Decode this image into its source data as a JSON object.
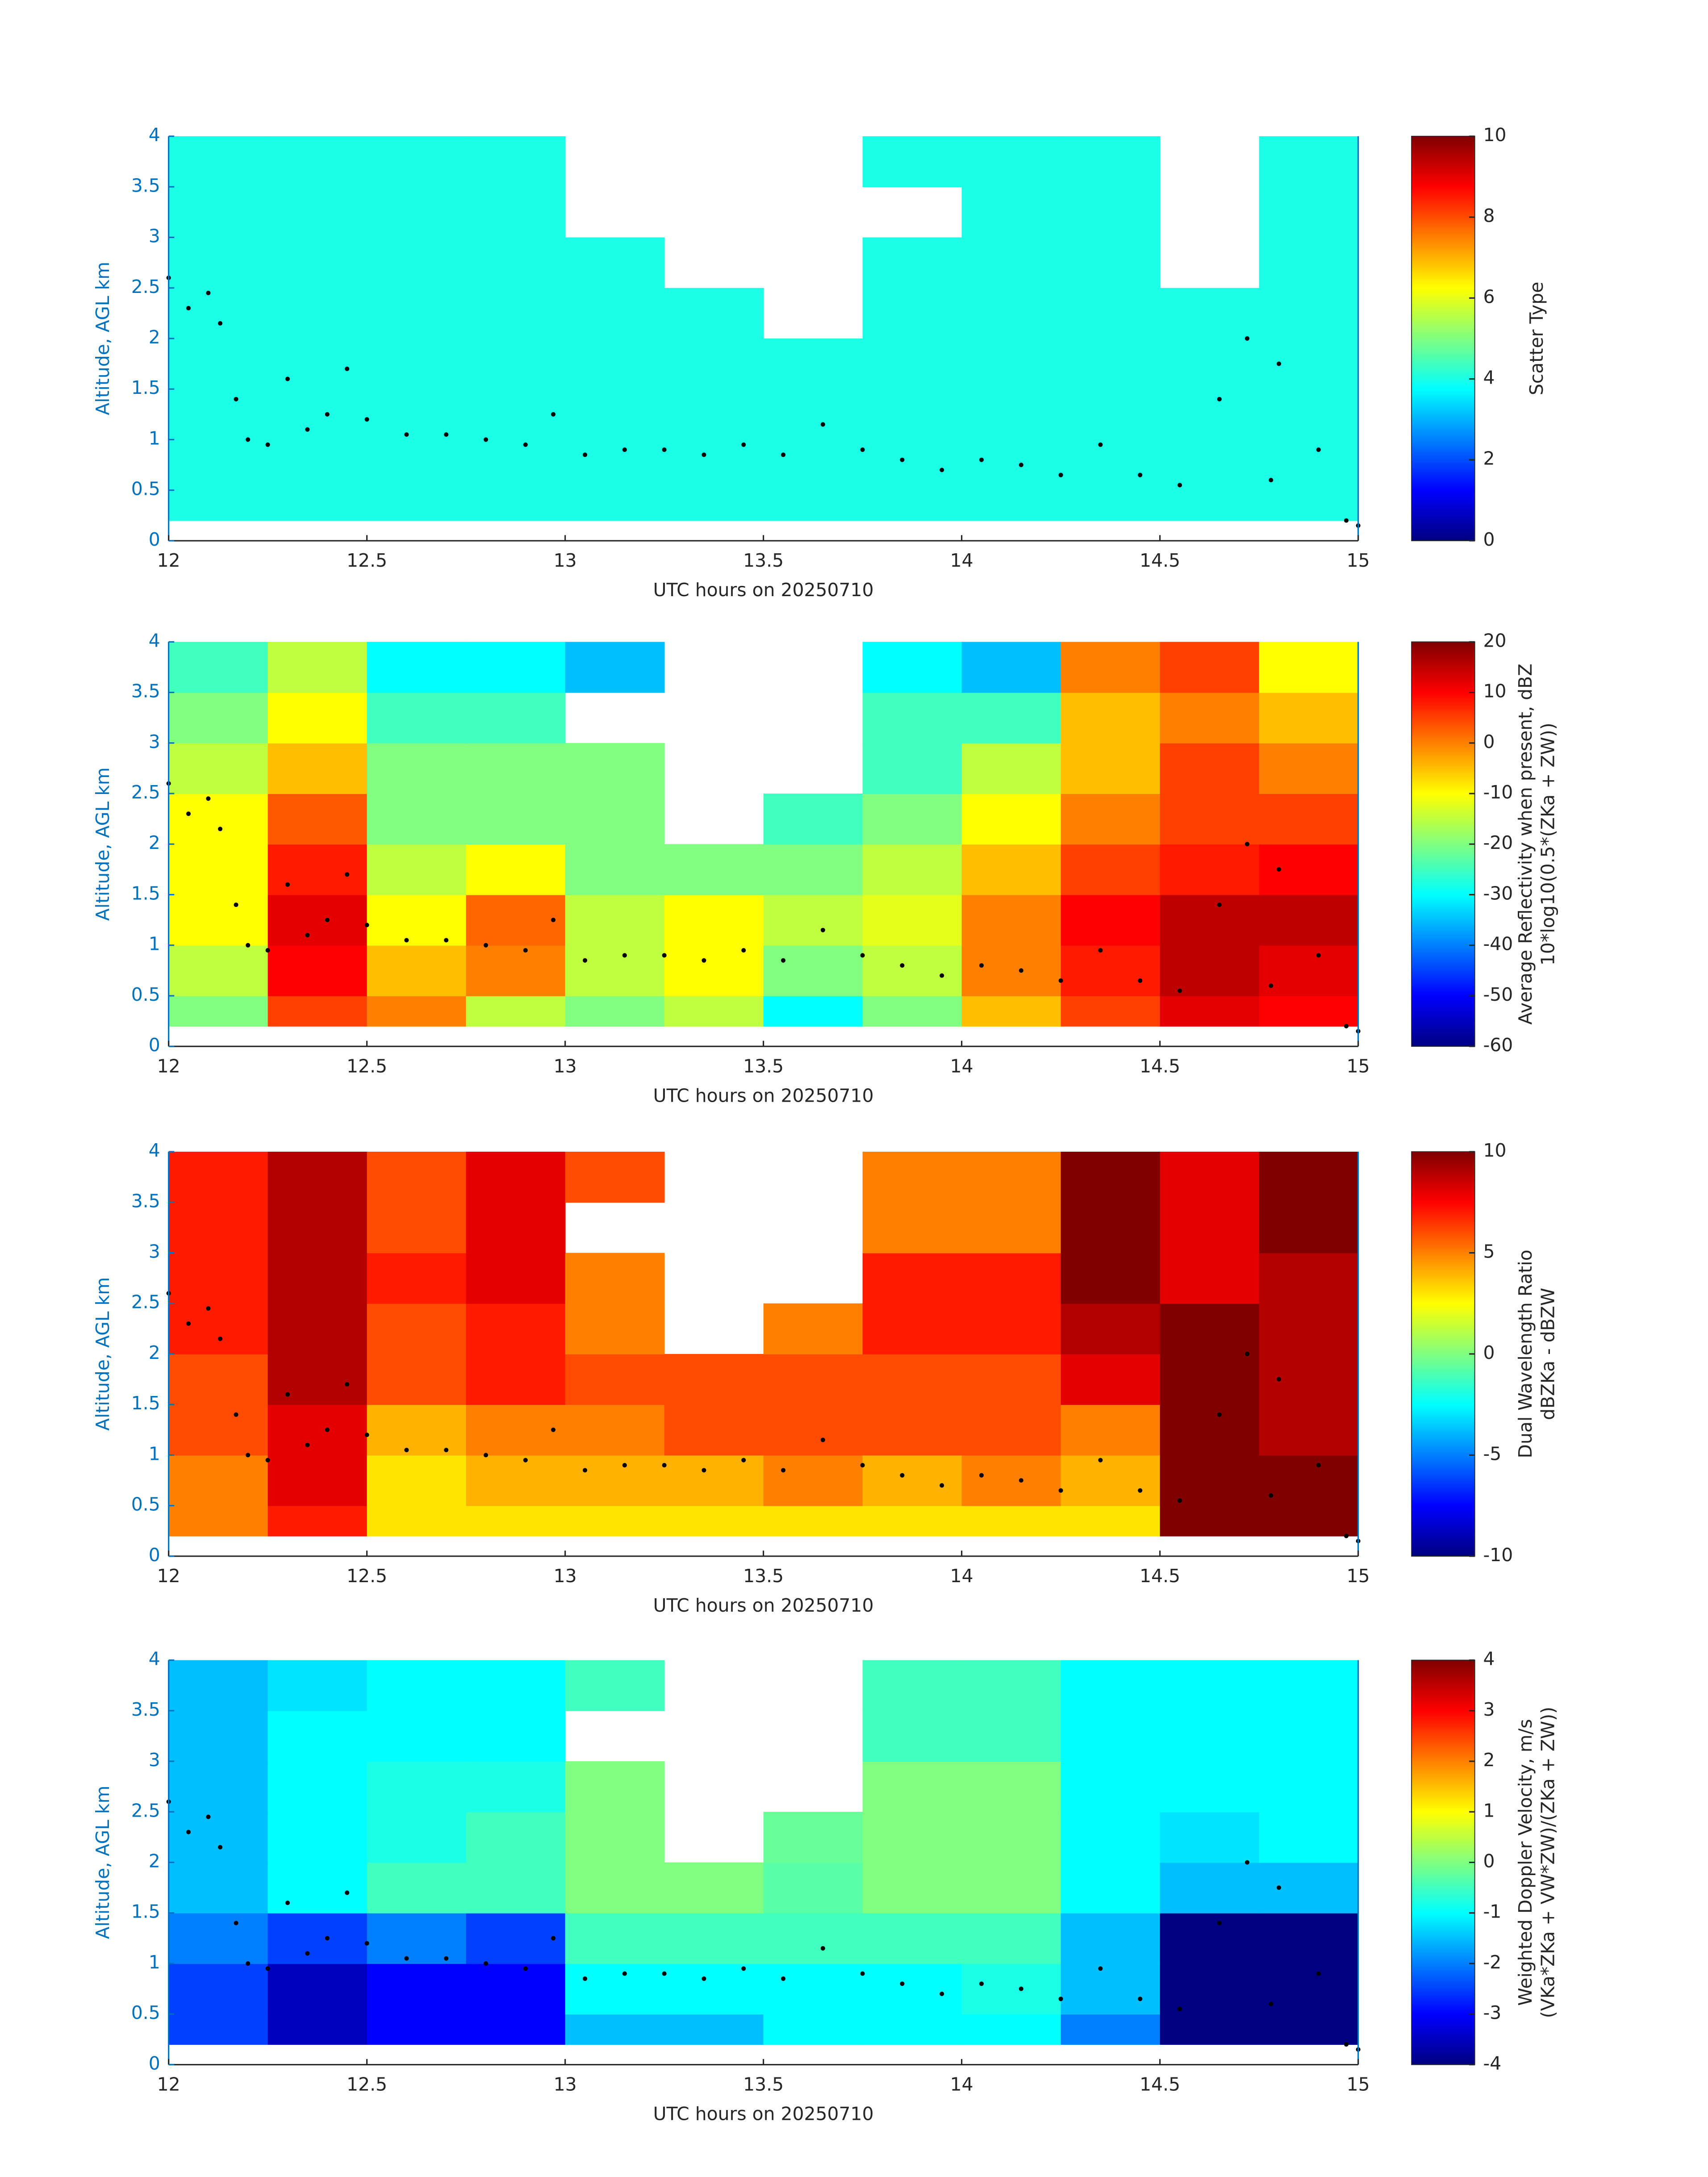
{
  "chart_data": [
    {
      "type": "heatmap",
      "xlabel": "UTC hours on 20250710",
      "ylabel": "Altitude, AGL km",
      "colorbar_label": [
        "Scatter Type"
      ],
      "x_edges": [
        12,
        12.25,
        12.5,
        12.75,
        13,
        13.25,
        13.5,
        13.75,
        14,
        14.25,
        14.5,
        14.75,
        15
      ],
      "y_edges": [
        0.2,
        0.5,
        1,
        1.5,
        2,
        2.5,
        3,
        3.5,
        4
      ],
      "z": [
        [
          4,
          4,
          4,
          4,
          4,
          4,
          4,
          4,
          4,
          4,
          4,
          4
        ],
        [
          4,
          4,
          4,
          4,
          4,
          4,
          4,
          4,
          4,
          4,
          4,
          4
        ],
        [
          4,
          4,
          4,
          4,
          4,
          4,
          4,
          4,
          4,
          4,
          4,
          4
        ],
        [
          4,
          4,
          4,
          4,
          4,
          4,
          4,
          4,
          4,
          4,
          4,
          4
        ],
        [
          4,
          4,
          4,
          4,
          4,
          4,
          null,
          4,
          4,
          4,
          4,
          4
        ],
        [
          4,
          4,
          4,
          4,
          4,
          null,
          null,
          4,
          4,
          4,
          null,
          4
        ],
        [
          4,
          4,
          4,
          4,
          null,
          null,
          null,
          null,
          4,
          4,
          null,
          4
        ],
        [
          4,
          4,
          4,
          4,
          null,
          null,
          null,
          4,
          4,
          4,
          null,
          4
        ]
      ],
      "clim": [
        0,
        10
      ],
      "cticks": [
        0,
        2,
        4,
        6,
        8,
        10
      ],
      "colormap": "jet",
      "xlim": [
        12,
        15
      ],
      "ylim": [
        0,
        4
      ],
      "xticks": [
        12,
        12.5,
        13,
        13.5,
        14,
        14.5,
        15
      ],
      "yticks": [
        0,
        0.5,
        1,
        1.5,
        2,
        2.5,
        3,
        3.5,
        4
      ],
      "markers": {
        "color": "#000000",
        "x": [
          12.0,
          12.05,
          12.1,
          12.13,
          12.17,
          12.2,
          12.25,
          12.3,
          12.35,
          12.4,
          12.45,
          12.5,
          12.6,
          12.7,
          12.8,
          12.9,
          12.97,
          13.05,
          13.15,
          13.25,
          13.35,
          13.45,
          13.55,
          13.65,
          13.75,
          13.85,
          13.95,
          14.05,
          14.15,
          14.25,
          14.35,
          14.45,
          14.55,
          14.65,
          14.72,
          14.78,
          14.8,
          14.9,
          14.97,
          15.0
        ],
        "y": [
          2.6,
          2.3,
          2.45,
          2.15,
          1.4,
          1.0,
          0.95,
          1.6,
          1.1,
          1.25,
          1.7,
          1.2,
          1.05,
          1.05,
          1.0,
          0.95,
          1.25,
          0.85,
          0.9,
          0.9,
          0.85,
          0.95,
          0.85,
          1.15,
          0.9,
          0.8,
          0.7,
          0.8,
          0.75,
          0.65,
          0.95,
          0.65,
          0.55,
          1.4,
          2.0,
          0.6,
          1.75,
          0.9,
          0.2,
          0.15
        ]
      }
    },
    {
      "type": "heatmap",
      "xlabel": "UTC hours on 20250710",
      "ylabel": "Altitude, AGL km",
      "colorbar_label": [
        "Average Reflectivity when present, dBZ",
        "10*log10(0.5*(ZKa + ZW))"
      ],
      "x_edges": [
        12,
        12.25,
        12.5,
        12.75,
        13,
        13.25,
        13.5,
        13.75,
        14,
        14.25,
        14.5,
        14.75,
        15
      ],
      "y_edges": [
        0.2,
        0.5,
        1,
        1.5,
        2,
        2.5,
        3,
        3.5,
        4
      ],
      "z": [
        [
          -20,
          5,
          0,
          -15,
          -20,
          -15,
          -30,
          -20,
          -5,
          5,
          12,
          10
        ],
        [
          -15,
          10,
          -5,
          0,
          -15,
          -10,
          -20,
          -15,
          0,
          8,
          15,
          12
        ],
        [
          -10,
          12,
          -10,
          2,
          -15,
          -10,
          -15,
          -12,
          0,
          10,
          15,
          15
        ],
        [
          -10,
          8,
          -15,
          -10,
          -20,
          -20,
          -20,
          -15,
          -5,
          5,
          8,
          10
        ],
        [
          -10,
          3,
          -20,
          -20,
          -20,
          null,
          -25,
          -20,
          -10,
          0,
          5,
          5
        ],
        [
          -15,
          -5,
          -20,
          -20,
          -20,
          null,
          null,
          -25,
          -15,
          -5,
          5,
          0
        ],
        [
          -20,
          -10,
          -25,
          -25,
          null,
          null,
          null,
          -25,
          -25,
          -5,
          0,
          -5
        ],
        [
          -25,
          -15,
          -30,
          -30,
          -35,
          null,
          null,
          -30,
          -35,
          0,
          5,
          -10
        ]
      ],
      "clim": [
        -60,
        20
      ],
      "cticks": [
        -60,
        -50,
        -40,
        -30,
        -20,
        -10,
        0,
        10,
        20
      ],
      "colormap": "jet",
      "xlim": [
        12,
        15
      ],
      "ylim": [
        0,
        4
      ],
      "xticks": [
        12,
        12.5,
        13,
        13.5,
        14,
        14.5,
        15
      ],
      "yticks": [
        0,
        0.5,
        1,
        1.5,
        2,
        2.5,
        3,
        3.5,
        4
      ],
      "markers": {
        "color": "#000000",
        "x": [
          12.0,
          12.05,
          12.1,
          12.13,
          12.17,
          12.2,
          12.25,
          12.3,
          12.35,
          12.4,
          12.45,
          12.5,
          12.6,
          12.7,
          12.8,
          12.9,
          12.97,
          13.05,
          13.15,
          13.25,
          13.35,
          13.45,
          13.55,
          13.65,
          13.75,
          13.85,
          13.95,
          14.05,
          14.15,
          14.25,
          14.35,
          14.45,
          14.55,
          14.65,
          14.72,
          14.78,
          14.8,
          14.9,
          14.97,
          15.0
        ],
        "y": [
          2.6,
          2.3,
          2.45,
          2.15,
          1.4,
          1.0,
          0.95,
          1.6,
          1.1,
          1.25,
          1.7,
          1.2,
          1.05,
          1.05,
          1.0,
          0.95,
          1.25,
          0.85,
          0.9,
          0.9,
          0.85,
          0.95,
          0.85,
          1.15,
          0.9,
          0.8,
          0.7,
          0.8,
          0.75,
          0.65,
          0.95,
          0.65,
          0.55,
          1.4,
          2.0,
          0.6,
          1.75,
          0.9,
          0.2,
          0.15
        ]
      }
    },
    {
      "type": "heatmap",
      "xlabel": "UTC hours on 20250710",
      "ylabel": "Altitude, AGL km",
      "colorbar_label": [
        "Dual Wavelength Ratio",
        "dBZKa - dBZW"
      ],
      "x_edges": [
        12,
        12.25,
        12.5,
        12.75,
        13,
        13.25,
        13.5,
        13.75,
        14,
        14.25,
        14.5,
        14.75,
        15
      ],
      "y_edges": [
        0.2,
        0.5,
        1,
        1.5,
        2,
        2.5,
        3,
        3.5,
        4
      ],
      "z": [
        [
          5,
          7,
          3,
          3,
          3,
          3,
          3,
          3,
          3,
          3,
          10,
          10
        ],
        [
          5,
          8,
          3,
          4,
          4,
          4,
          5,
          4,
          5,
          4,
          10,
          10
        ],
        [
          6,
          8,
          4,
          5,
          5,
          6,
          6,
          6,
          6,
          5,
          10,
          9
        ],
        [
          6,
          9,
          6,
          7,
          6,
          6,
          6,
          6,
          6,
          8,
          10,
          9
        ],
        [
          7,
          9,
          6,
          7,
          5,
          null,
          5,
          7,
          7,
          9,
          10,
          9
        ],
        [
          7,
          9,
          7,
          8,
          5,
          null,
          null,
          7,
          7,
          10,
          8,
          9
        ],
        [
          7,
          9,
          6,
          8,
          null,
          null,
          null,
          5,
          5,
          10,
          8,
          10
        ],
        [
          7,
          9,
          6,
          8,
          6,
          null,
          null,
          5,
          5,
          10,
          8,
          10
        ]
      ],
      "clim": [
        -10,
        10
      ],
      "cticks": [
        -10,
        -5,
        0,
        5,
        10
      ],
      "colormap": "jet",
      "xlim": [
        12,
        15
      ],
      "ylim": [
        0,
        4
      ],
      "xticks": [
        12,
        12.5,
        13,
        13.5,
        14,
        14.5,
        15
      ],
      "yticks": [
        0,
        0.5,
        1,
        1.5,
        2,
        2.5,
        3,
        3.5,
        4
      ],
      "markers": {
        "color": "#000000",
        "x": [
          12.0,
          12.05,
          12.1,
          12.13,
          12.17,
          12.2,
          12.25,
          12.3,
          12.35,
          12.4,
          12.45,
          12.5,
          12.6,
          12.7,
          12.8,
          12.9,
          12.97,
          13.05,
          13.15,
          13.25,
          13.35,
          13.45,
          13.55,
          13.65,
          13.75,
          13.85,
          13.95,
          14.05,
          14.15,
          14.25,
          14.35,
          14.45,
          14.55,
          14.65,
          14.72,
          14.78,
          14.8,
          14.9,
          14.97,
          15.0
        ],
        "y": [
          2.6,
          2.3,
          2.45,
          2.15,
          1.4,
          1.0,
          0.95,
          1.6,
          1.1,
          1.25,
          1.7,
          1.2,
          1.05,
          1.05,
          1.0,
          0.95,
          1.25,
          0.85,
          0.9,
          0.9,
          0.85,
          0.95,
          0.85,
          1.15,
          0.9,
          0.8,
          0.7,
          0.8,
          0.75,
          0.65,
          0.95,
          0.65,
          0.55,
          1.4,
          2.0,
          0.6,
          1.75,
          0.9,
          0.2,
          0.15
        ]
      }
    },
    {
      "type": "heatmap",
      "xlabel": "UTC hours on 20250710",
      "ylabel": "Altitude, AGL km",
      "colorbar_label": [
        "Weighted Doppler Velocity, m/s",
        "(VKa*ZKa + VW*ZW)/(ZKa + ZW))"
      ],
      "x_edges": [
        12,
        12.25,
        12.5,
        12.75,
        13,
        13.25,
        13.5,
        13.75,
        14,
        14.25,
        14.5,
        14.75,
        15
      ],
      "y_edges": [
        0.2,
        0.5,
        1,
        1.5,
        2,
        2.5,
        3,
        3.5,
        4
      ],
      "z": [
        [
          -2.5,
          -3.5,
          -3,
          -3,
          -1.5,
          -1.5,
          -1,
          -1,
          -1,
          -2,
          -4,
          -4
        ],
        [
          -2.5,
          -3.5,
          -3,
          -3,
          -1,
          -1,
          -1,
          -1,
          -0.8,
          -1.5,
          -4,
          -4
        ],
        [
          -2,
          -2.5,
          -2,
          -2.5,
          -0.5,
          -0.5,
          -0.5,
          -0.5,
          -0.5,
          -1.5,
          -4,
          -4
        ],
        [
          -1.5,
          -1,
          -0.5,
          -0.5,
          0,
          0,
          -0.3,
          0,
          0,
          -1,
          -1.5,
          -1.5
        ],
        [
          -1.5,
          -1,
          -0.8,
          -0.5,
          0,
          null,
          -0.2,
          0,
          0,
          -1,
          -1.2,
          -1
        ],
        [
          -1.5,
          -1,
          -0.8,
          -0.8,
          0,
          null,
          null,
          0,
          0,
          -1,
          -1,
          -1
        ],
        [
          -1.5,
          -1,
          -1,
          -1,
          null,
          null,
          null,
          -0.5,
          -0.5,
          -1,
          -1,
          -1
        ],
        [
          -1.5,
          -1.2,
          -1,
          -1,
          -0.5,
          null,
          null,
          -0.5,
          -0.5,
          -1,
          -1,
          -1
        ]
      ],
      "clim": [
        -4,
        4
      ],
      "cticks": [
        -4,
        -3,
        -2,
        -1,
        0,
        1,
        2,
        3,
        4
      ],
      "colormap": "jet",
      "xlim": [
        12,
        15
      ],
      "ylim": [
        0,
        4
      ],
      "xticks": [
        12,
        12.5,
        13,
        13.5,
        14,
        14.5,
        15
      ],
      "yticks": [
        0,
        0.5,
        1,
        1.5,
        2,
        2.5,
        3,
        3.5,
        4
      ],
      "markers": {
        "color": "#000000",
        "x": [
          12.0,
          12.05,
          12.1,
          12.13,
          12.17,
          12.2,
          12.25,
          12.3,
          12.35,
          12.4,
          12.45,
          12.5,
          12.6,
          12.7,
          12.8,
          12.9,
          12.97,
          13.05,
          13.15,
          13.25,
          13.35,
          13.45,
          13.55,
          13.65,
          13.75,
          13.85,
          13.95,
          14.05,
          14.15,
          14.25,
          14.35,
          14.45,
          14.55,
          14.65,
          14.72,
          14.78,
          14.8,
          14.9,
          14.97,
          15.0
        ],
        "y": [
          2.6,
          2.3,
          2.45,
          2.15,
          1.4,
          1.0,
          0.95,
          1.6,
          1.1,
          1.25,
          1.7,
          1.2,
          1.05,
          1.05,
          1.0,
          0.95,
          1.25,
          0.85,
          0.9,
          0.9,
          0.85,
          0.95,
          0.85,
          1.15,
          0.9,
          0.8,
          0.7,
          0.8,
          0.75,
          0.65,
          0.95,
          0.65,
          0.55,
          1.4,
          2.0,
          0.6,
          1.75,
          0.9,
          0.2,
          0.15
        ]
      }
    }
  ]
}
